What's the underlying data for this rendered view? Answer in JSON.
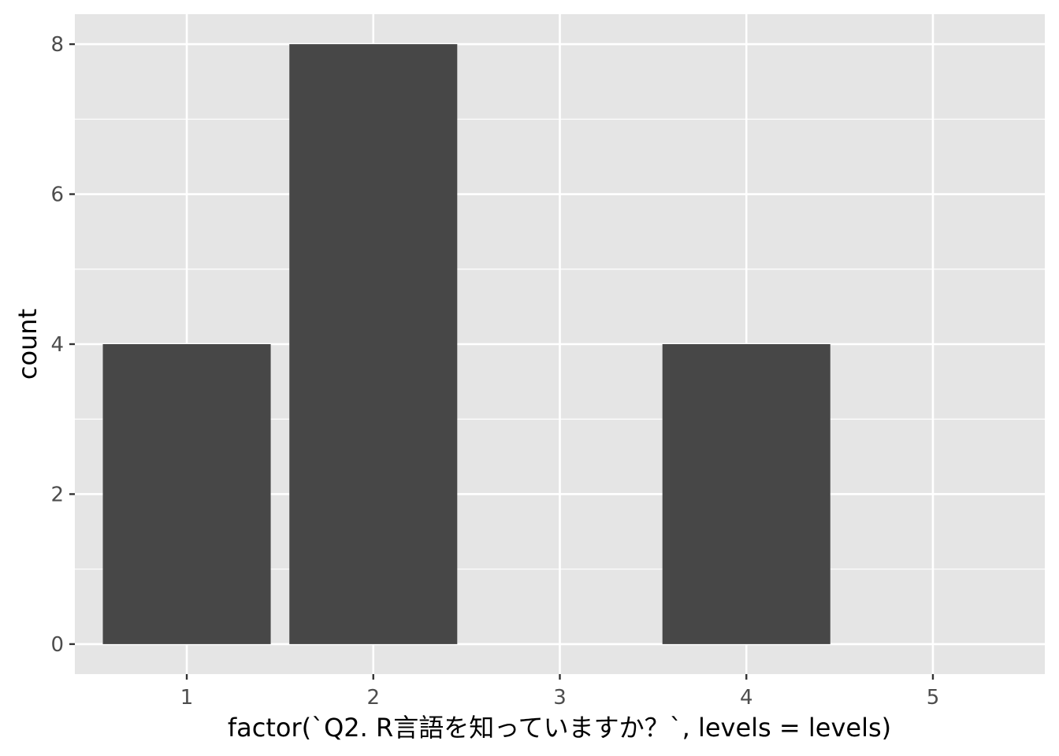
{
  "chart_data": {
    "type": "bar",
    "categories": [
      "1",
      "2",
      "3",
      "4",
      "5"
    ],
    "values": [
      4,
      8,
      0,
      4,
      0
    ],
    "xlabel": "factor(`Q2. R言語を知っていますか？`, levels = levels)",
    "ylabel": "count",
    "yticks": [
      0,
      2,
      4,
      6,
      8
    ],
    "ylim": [
      -0.4,
      8.4
    ],
    "grid": true,
    "colors": {
      "panel": "#e5e5e5",
      "grid": "#ffffff",
      "bar": "#474747",
      "tick_text": "#4d4d4d",
      "tick_mark": "#333333"
    }
  }
}
